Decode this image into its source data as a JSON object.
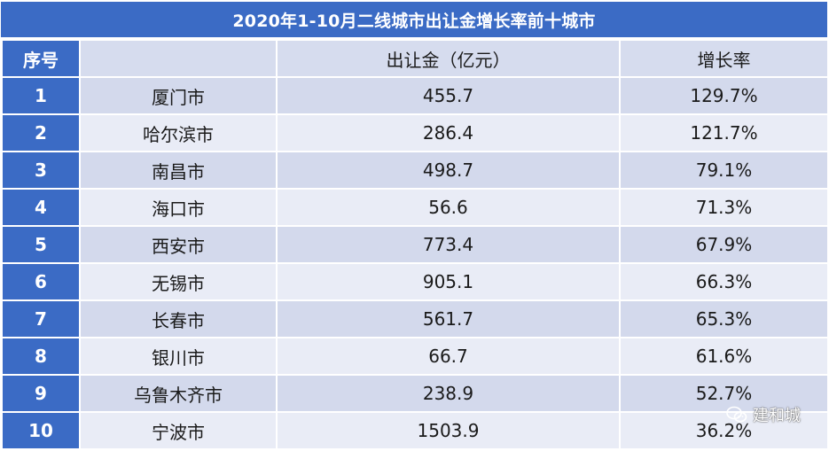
{
  "title": "2020年1-10月二线城市出让金增长率前十城市",
  "headers": {
    "index": "序号",
    "city": "",
    "revenue": "出让金（亿元）",
    "growth": "增长率"
  },
  "rows": [
    {
      "index": "1",
      "city": "厦门市",
      "revenue": "455.7",
      "growth": "129.7%"
    },
    {
      "index": "2",
      "city": "哈尔滨市",
      "revenue": "286.4",
      "growth": "121.7%"
    },
    {
      "index": "3",
      "city": "南昌市",
      "revenue": "498.7",
      "growth": "79.1%"
    },
    {
      "index": "4",
      "city": "海口市",
      "revenue": "56.6",
      "growth": "71.3%"
    },
    {
      "index": "5",
      "city": "西安市",
      "revenue": "773.4",
      "growth": "67.9%"
    },
    {
      "index": "6",
      "city": "无锡市",
      "revenue": "905.1",
      "growth": "66.3%"
    },
    {
      "index": "7",
      "city": "长春市",
      "revenue": "561.7",
      "growth": "65.3%"
    },
    {
      "index": "8",
      "city": "银川市",
      "revenue": "66.7",
      "growth": "61.6%"
    },
    {
      "index": "9",
      "city": "乌鲁木齐市",
      "revenue": "238.9",
      "growth": "52.7%"
    },
    {
      "index": "10",
      "city": "宁波市",
      "revenue": "1503.9",
      "growth": "36.2%"
    }
  ],
  "watermark": {
    "icon": "wechat-icon",
    "text": "建和城"
  },
  "colors": {
    "header_blue": "#3b6bc5",
    "row_light": "#e9ecf6",
    "row_mid": "#d3d9ec"
  }
}
